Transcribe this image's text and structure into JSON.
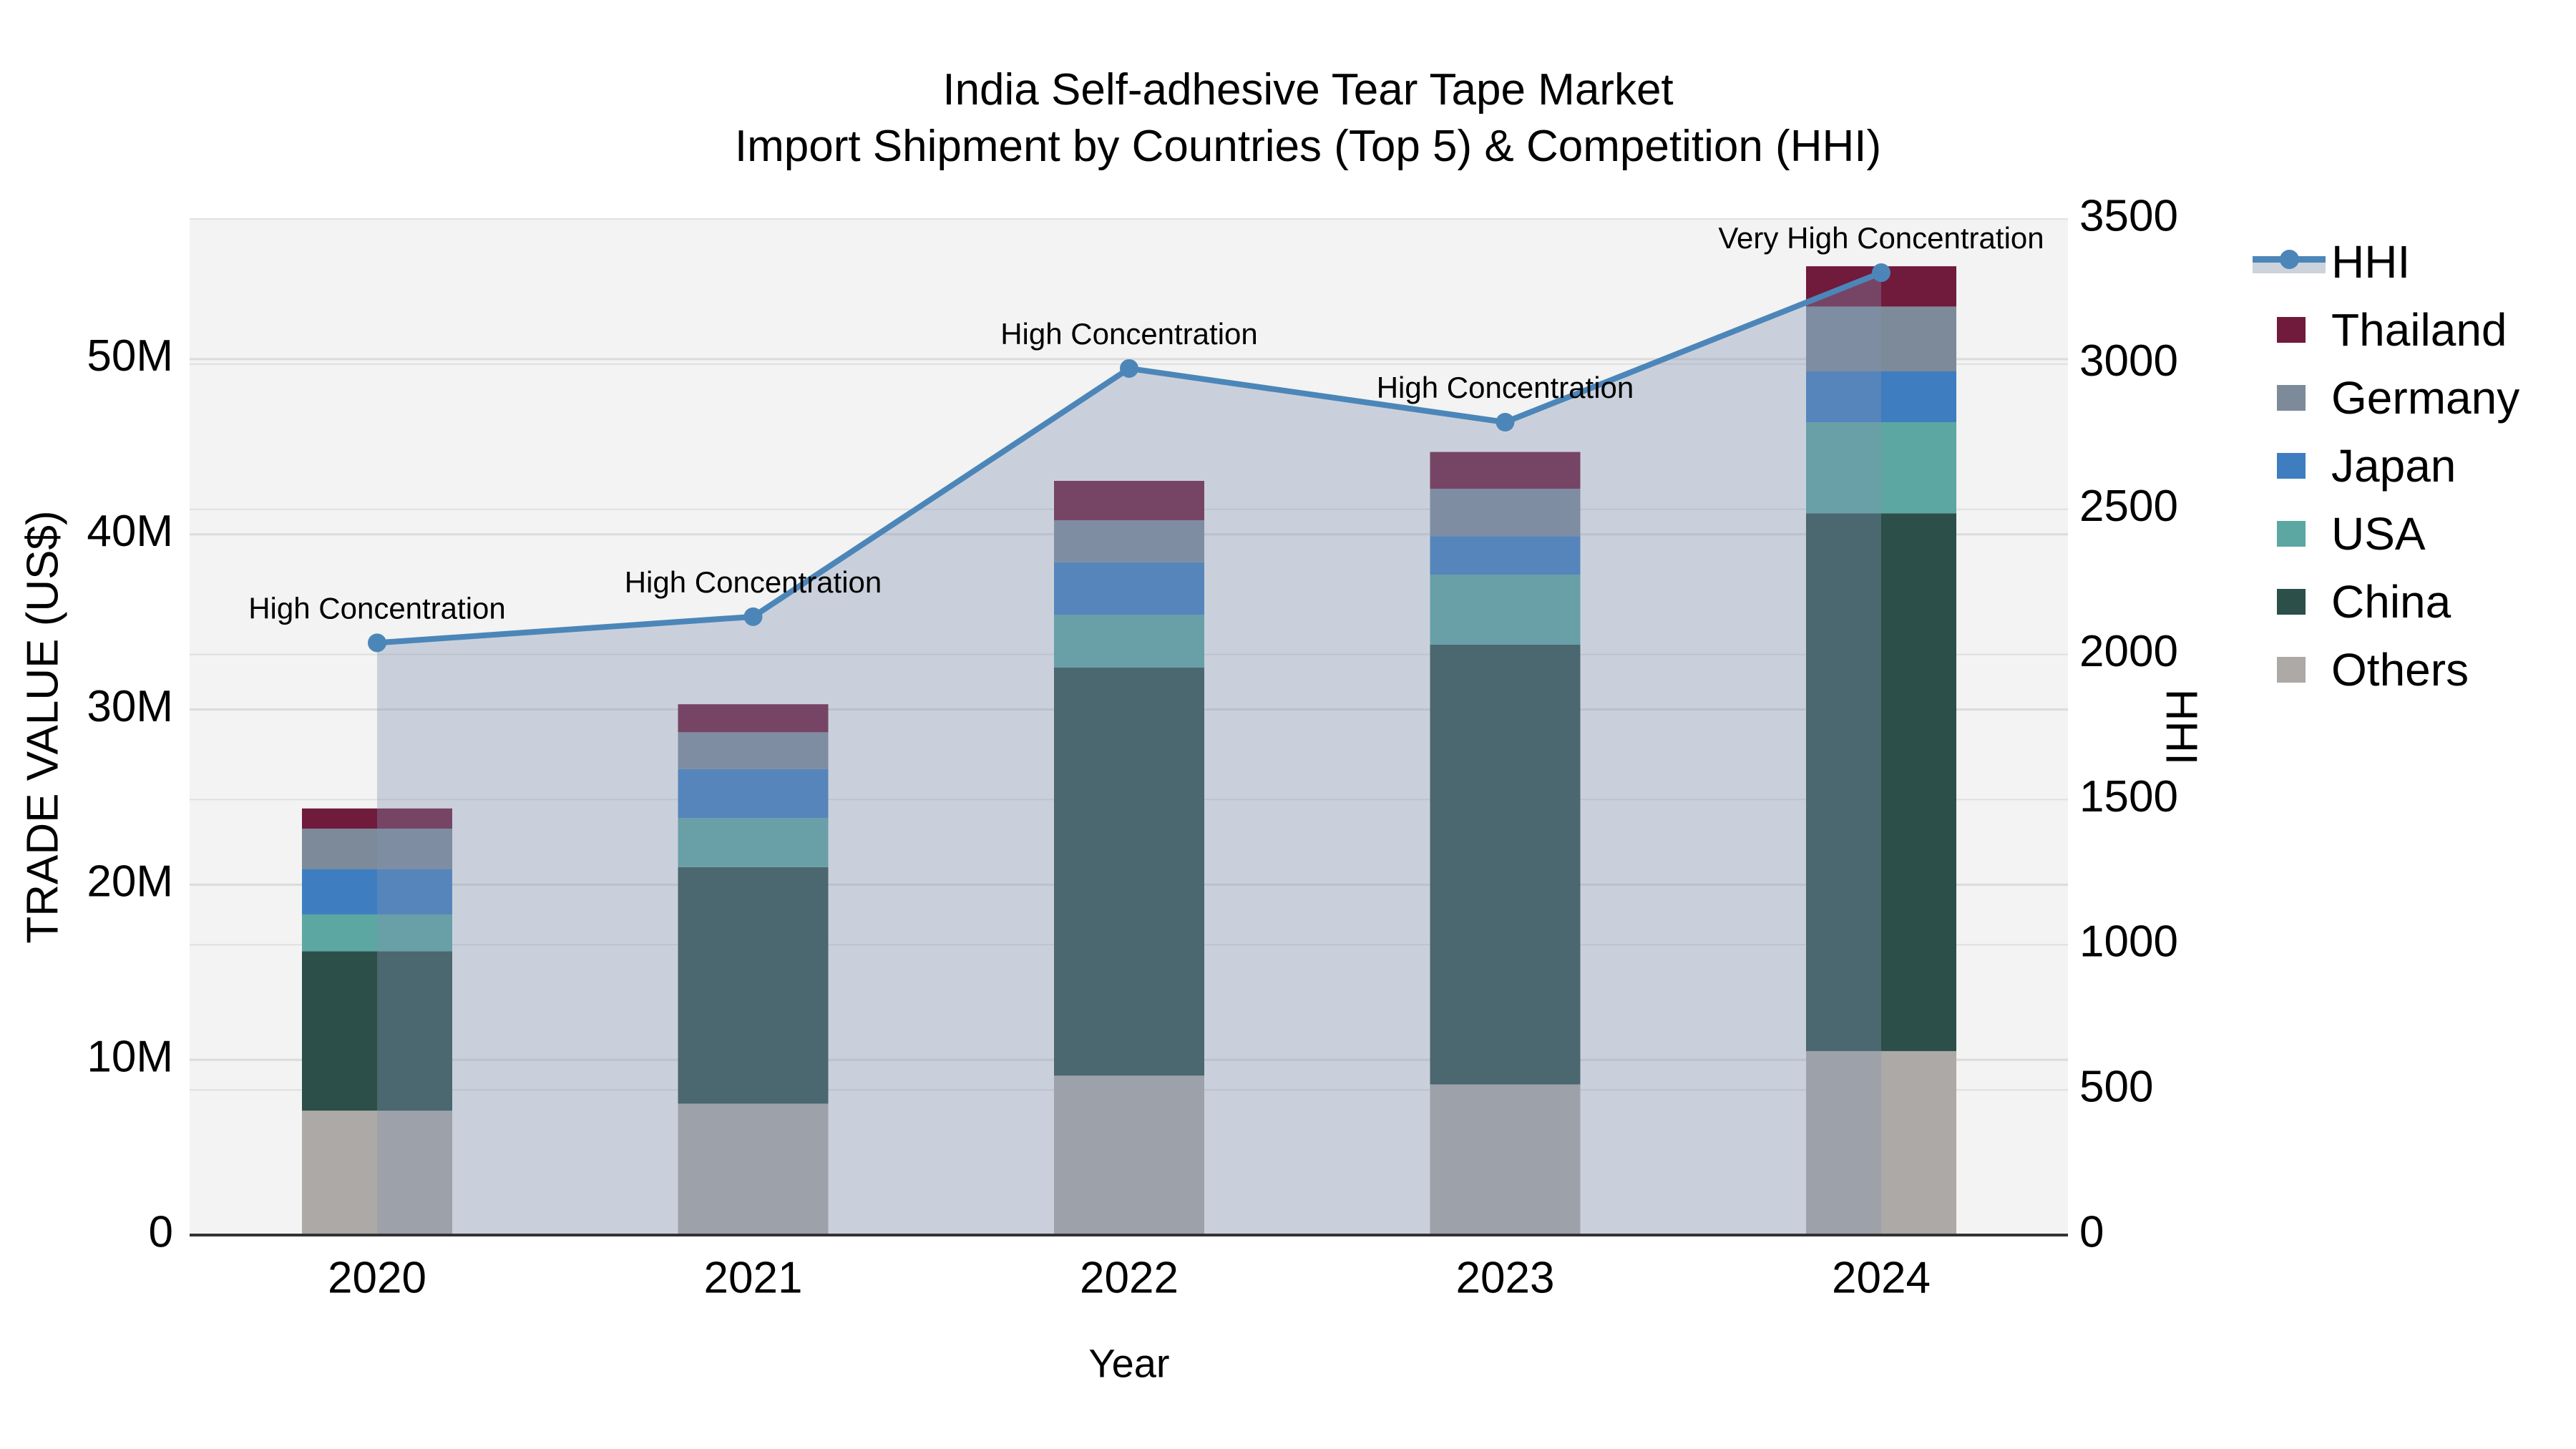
{
  "title": {
    "line1": "India Self-adhesive Tear Tape Market",
    "line2": "Import Shipment by Countries (Top 5) & Competition (HHI)"
  },
  "axes": {
    "left": {
      "title": "TRADE VALUE (US$)",
      "ticks": [
        "0",
        "10M",
        "20M",
        "30M",
        "40M",
        "50M"
      ],
      "tick_values": [
        0,
        10,
        20,
        30,
        40,
        50
      ],
      "max": 58
    },
    "right": {
      "title": "HHI",
      "ticks": [
        "0",
        "500",
        "1000",
        "1500",
        "2000",
        "2500",
        "3000",
        "3500"
      ],
      "tick_values": [
        0,
        500,
        1000,
        1500,
        2000,
        2500,
        3000,
        3500
      ],
      "max": 3500
    },
    "x": {
      "title": "Year",
      "categories": [
        "2020",
        "2021",
        "2022",
        "2023",
        "2024"
      ]
    }
  },
  "legend": {
    "items": [
      {
        "label": "HHI",
        "type": "line",
        "color": "#4c86b9"
      },
      {
        "label": "Thailand",
        "type": "swatch",
        "color": "#701a3c"
      },
      {
        "label": "Germany",
        "type": "swatch",
        "color": "#7d8a99"
      },
      {
        "label": "Japan",
        "type": "swatch",
        "color": "#3e7ec0"
      },
      {
        "label": "USA",
        "type": "swatch",
        "color": "#5ca7a2"
      },
      {
        "label": "China",
        "type": "swatch",
        "color": "#2c4f4a"
      },
      {
        "label": "Others",
        "type": "swatch",
        "color": "#aca9a6"
      }
    ]
  },
  "chart_data": {
    "type": "combo_stacked_bar_line",
    "categories": [
      "2020",
      "2021",
      "2022",
      "2023",
      "2024"
    ],
    "bar_unit": "millions USD",
    "series": [
      {
        "name": "Others",
        "color": "#aca9a6",
        "values": [
          7.1,
          7.5,
          9.1,
          8.6,
          10.5
        ]
      },
      {
        "name": "China",
        "color": "#2c4f4a",
        "values": [
          9.1,
          13.5,
          23.3,
          25.1,
          30.7
        ]
      },
      {
        "name": "USA",
        "color": "#5ca7a2",
        "values": [
          2.1,
          2.8,
          3.0,
          4.0,
          5.2
        ]
      },
      {
        "name": "Japan",
        "color": "#3e7ec0",
        "values": [
          2.6,
          2.8,
          3.0,
          2.2,
          2.9
        ]
      },
      {
        "name": "Germany",
        "color": "#7d8a99",
        "values": [
          2.3,
          2.1,
          2.4,
          2.7,
          3.7
        ]
      },
      {
        "name": "Thailand",
        "color": "#701a3c",
        "values": [
          1.15,
          1.6,
          2.25,
          2.1,
          2.3
        ]
      }
    ],
    "bar_totals": [
      24.35,
      30.3,
      43.05,
      44.7,
      55.3
    ],
    "line_series": {
      "name": "HHI",
      "color": "#4c86b9",
      "area_fill": "rgba(130,148,177,0.36)",
      "values": [
        2040,
        2130,
        2985,
        2800,
        3315
      ],
      "annotations": [
        "High Concentration",
        "High Concentration",
        "High Concentration",
        "High Concentration",
        "Very High Concentration"
      ]
    },
    "title": "India Self-adhesive Tear Tape Market — Import Shipment by Countries (Top 5) & Competition (HHI)",
    "xlabel": "Year",
    "ylabel_left": "TRADE VALUE (US$)",
    "ylabel_right": "HHI",
    "ylim_left": [
      0,
      58
    ],
    "ylim_right": [
      0,
      3500
    ],
    "grid": true,
    "legend_position": "right",
    "plot_bg": "#f2f3f2",
    "grid_color": "#dbdbdb",
    "axis_line_color": "#333333"
  }
}
